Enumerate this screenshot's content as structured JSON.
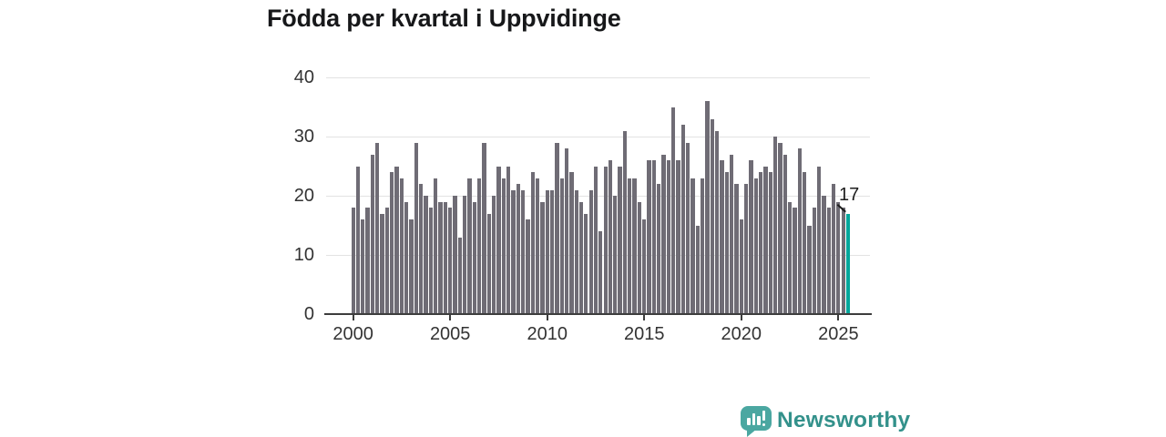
{
  "title": "Födda per kvartal i Uppvidinge",
  "chart_data": {
    "type": "bar",
    "title": "Födda per kvartal i Uppvidinge",
    "x_start_year": 2000,
    "x_start_quarter": 1,
    "x_end_year": 2025,
    "x_end_quarter": 3,
    "values": [
      18,
      25,
      16,
      18,
      27,
      29,
      17,
      18,
      24,
      25,
      23,
      19,
      16,
      29,
      22,
      20,
      18,
      23,
      19,
      19,
      18,
      20,
      13,
      20,
      23,
      19,
      23,
      29,
      17,
      20,
      25,
      23,
      25,
      21,
      22,
      21,
      16,
      24,
      23,
      19,
      21,
      21,
      29,
      23,
      28,
      24,
      21,
      19,
      17,
      21,
      25,
      14,
      25,
      26,
      20,
      25,
      31,
      23,
      23,
      19,
      16,
      26,
      26,
      22,
      27,
      26,
      35,
      26,
      32,
      29,
      23,
      15,
      23,
      36,
      33,
      31,
      26,
      24,
      27,
      22,
      16,
      22,
      26,
      23,
      24,
      25,
      24,
      30,
      29,
      27,
      19,
      18,
      28,
      24,
      15,
      18,
      25,
      20,
      18,
      22,
      19,
      18,
      17
    ],
    "highlight": {
      "index": 102,
      "value": 17,
      "label": "17",
      "color": "#00a69b"
    },
    "bar_color": "#6f6c75",
    "ylim": [
      0,
      40
    ],
    "yticks": [
      "0",
      "10",
      "20",
      "30",
      "40"
    ],
    "xticks": [
      "2000",
      "2005",
      "2010",
      "2015",
      "2020",
      "2025"
    ],
    "grid": true,
    "legend": null,
    "xlabel": "",
    "ylabel": ""
  },
  "branding": {
    "logo_text": "Newsworthy",
    "logo_text_color": "#33918b",
    "logo_icon_color": "#4ba7a1",
    "logo_icon": "speech-bubble-bar-chart"
  }
}
